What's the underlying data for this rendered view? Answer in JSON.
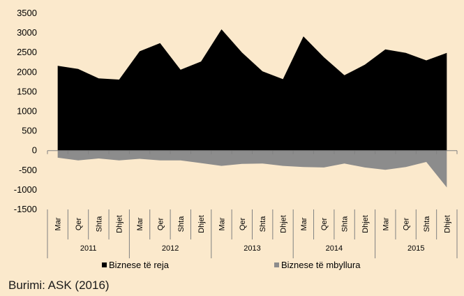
{
  "chart_data": {
    "type": "area",
    "x_categories": [
      "Mar",
      "Qer",
      "Shta",
      "Dhjet",
      "Mar",
      "Qer",
      "Shta",
      "Dhjet",
      "Mar",
      "Qer",
      "Shta",
      "Dhjet",
      "Mar",
      "Qer",
      "Shta",
      "Dhjet",
      "Mar",
      "Qer",
      "Shta",
      "Dhjet"
    ],
    "year_groups": [
      {
        "label": "2011",
        "span": 4
      },
      {
        "label": "2012",
        "span": 4
      },
      {
        "label": "2013",
        "span": 4
      },
      {
        "label": "2014",
        "span": 4
      },
      {
        "label": "2015",
        "span": 4
      }
    ],
    "series": [
      {
        "name": "Biznese të reja",
        "color": "#000000",
        "values": [
          2160,
          2080,
          1840,
          1810,
          2530,
          2740,
          2060,
          2270,
          3090,
          2500,
          2020,
          1820,
          2910,
          2380,
          1920,
          2190,
          2580,
          2490,
          2300,
          2490
        ]
      },
      {
        "name": "Biznese të mbyllura",
        "color": "#8c8c8c",
        "values": [
          -180,
          -250,
          -200,
          -250,
          -210,
          -250,
          -250,
          -320,
          -390,
          -340,
          -330,
          -390,
          -420,
          -430,
          -330,
          -430,
          -490,
          -420,
          -290,
          -940
        ]
      }
    ],
    "y_ticks": [
      3500,
      3000,
      2500,
      2000,
      1500,
      1000,
      500,
      0,
      -500,
      -1000,
      -1500
    ],
    "ylim": [
      -1500,
      3500
    ],
    "legend_position": "bottom"
  },
  "source_text": "Burimi: ASK (2016)"
}
